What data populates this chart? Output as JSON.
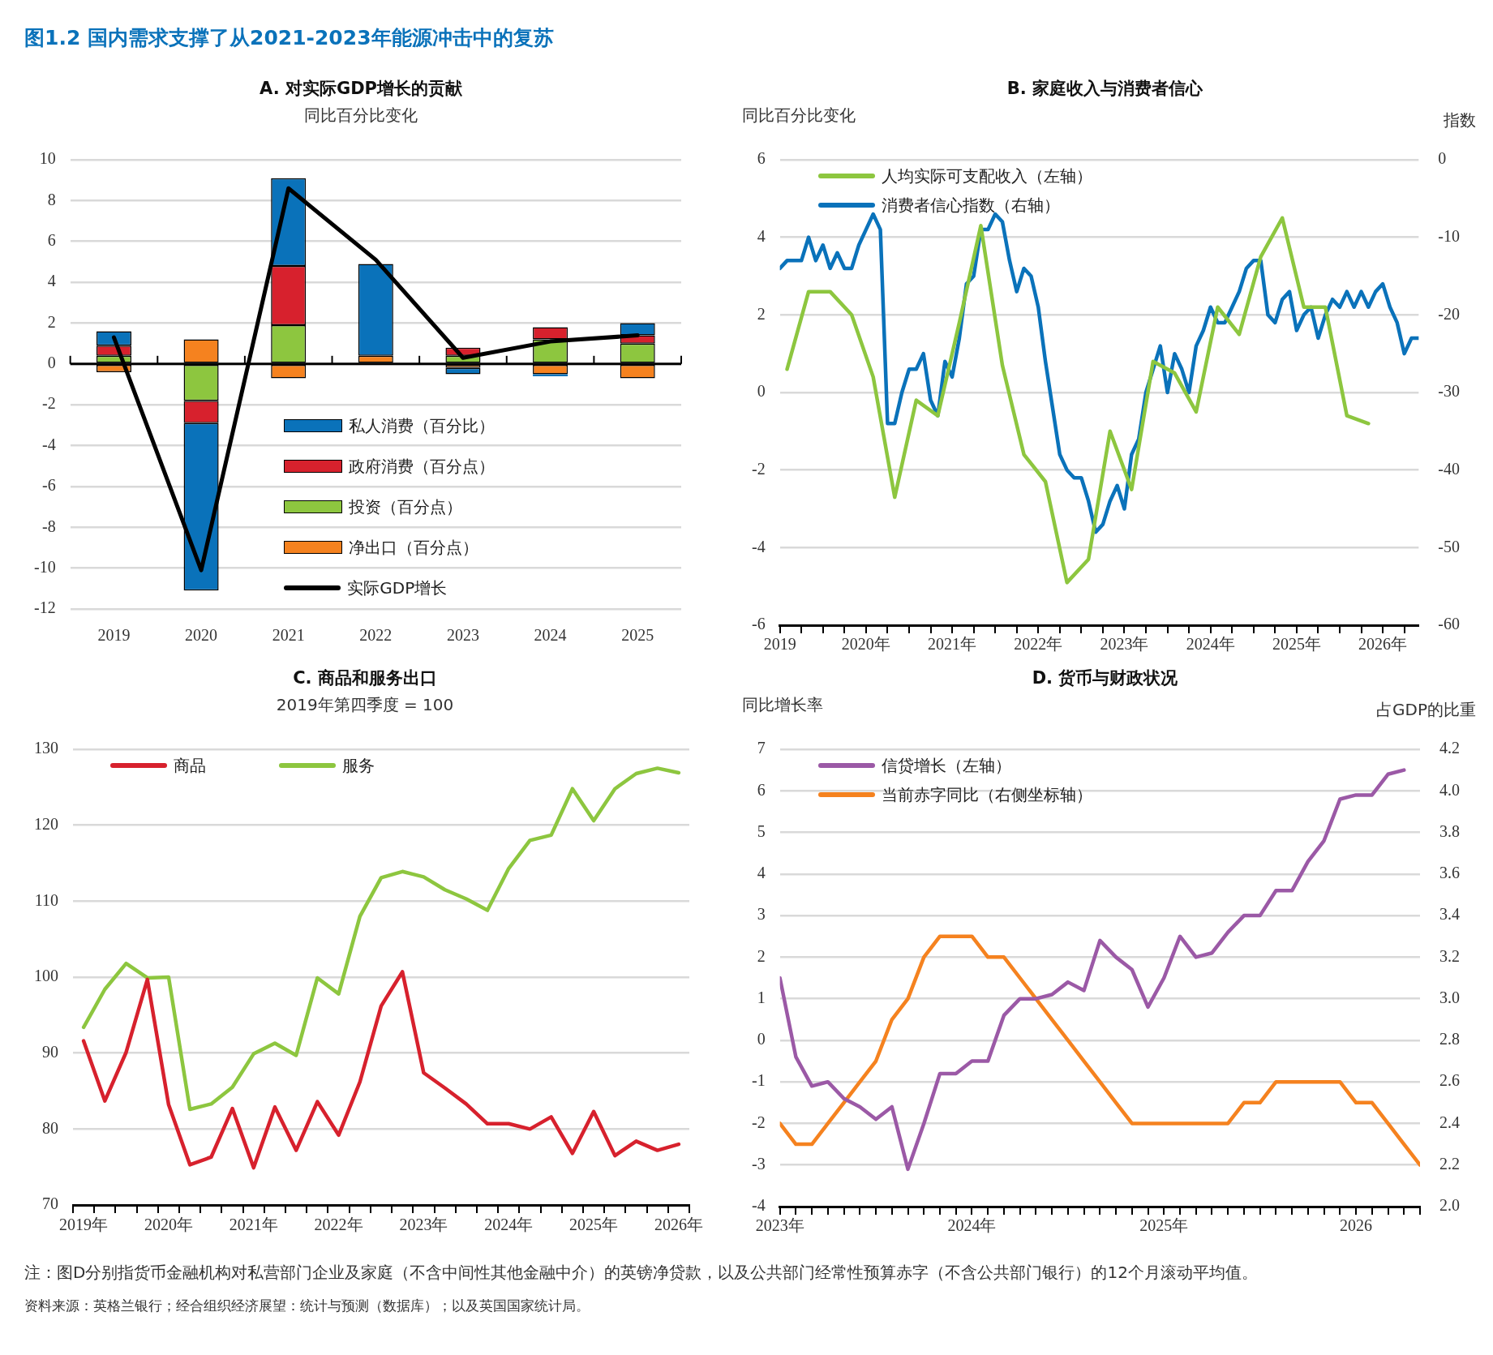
{
  "chart_data": [
    {
      "type": "bar",
      "title": "A. 对实际GDP增长的贡献",
      "subtitle": "同比百分比变化",
      "stacked": true,
      "legend": "bottom",
      "grid": "y",
      "marker": "none",
      "line_style": "solid",
      "annotations": [
        "图1.2 国内需求支撑了从2021-2023年能源冲击中的复苏"
      ],
      "categories": [
        "2019",
        "2020",
        "2021",
        "2022",
        "2023",
        "2024",
        "2025"
      ],
      "ylim": [
        -12,
        10
      ],
      "yticks": [
        -12,
        -10,
        -8,
        -6,
        -4,
        -2,
        0,
        2,
        4,
        6,
        8,
        10
      ],
      "series": [
        {
          "name": "净出口（百分点）",
          "type": "bar",
          "color": "#f5821f",
          "values": [
            -0.4,
            1.2,
            -0.7,
            0.4,
            -0.2,
            -0.5,
            -0.7
          ]
        },
        {
          "name": "投资（百分点）",
          "type": "bar",
          "color": "#8dc63f",
          "values": [
            0.4,
            -1.8,
            1.9,
            0,
            0.4,
            1.2,
            1.0
          ]
        },
        {
          "name": "政府消费（百分点）",
          "type": "bar",
          "color": "#d7212d",
          "values": [
            0.5,
            -1.1,
            2.9,
            0,
            0.4,
            0.6,
            0.4
          ]
        },
        {
          "name": "私人消费（百分比）",
          "type": "bar",
          "color": "#0a72ba",
          "values": [
            0.7,
            -8.2,
            4.3,
            4.5,
            -0.3,
            -0.1,
            0.6
          ]
        },
        {
          "name": "实际GDP增长",
          "type": "line",
          "color": "#000000",
          "values": [
            1.3,
            -10.1,
            8.6,
            5.1,
            0.3,
            1.1,
            1.4
          ]
        }
      ]
    },
    {
      "type": "line",
      "title": "B. 家庭收入与消费者信心",
      "ylabel": "同比百分比变化",
      "y2label": "指数",
      "legend": "top left",
      "grid": "y",
      "marker": "none",
      "line_style": "solid",
      "x": [
        "2019-01",
        "2019-02",
        "2019-03",
        "2019-04",
        "2019-05",
        "2019-06",
        "2019-07",
        "2019-08",
        "2019-09",
        "2019-10",
        "2019-11",
        "2019-12",
        "2020-01",
        "2020-02",
        "2020-03",
        "2020-04",
        "2020-05",
        "2020-06",
        "2020-07",
        "2020-08",
        "2020-09",
        "2020-10",
        "2020-11",
        "2020-12",
        "2021-01",
        "2021-02",
        "2021-03",
        "2021-04",
        "2021-05",
        "2021-06",
        "2021-07",
        "2021-08",
        "2021-09",
        "2021-10",
        "2021-11",
        "2021-12",
        "2022-01",
        "2022-02",
        "2022-03",
        "2022-04",
        "2022-05",
        "2022-06",
        "2022-07",
        "2022-08",
        "2022-09",
        "2022-10",
        "2022-11",
        "2022-12",
        "2023-01",
        "2023-02",
        "2023-03",
        "2023-04",
        "2023-05",
        "2023-06",
        "2023-07",
        "2023-08",
        "2023-09",
        "2023-10",
        "2023-11",
        "2023-12",
        "2024-01",
        "2024-02",
        "2024-03",
        "2024-04",
        "2024-05",
        "2024-06",
        "2024-07",
        "2024-08",
        "2024-09",
        "2024-10",
        "2024-11",
        "2024-12",
        "2025-01",
        "2025-02",
        "2025-03",
        "2025-04",
        "2025-05",
        "2025-06",
        "2025-07",
        "2025-08",
        "2025-09",
        "2025-10",
        "2025-11",
        "2025-12",
        "2026-01",
        "2026-02",
        "2026-03",
        "2026-04",
        "2026-05",
        "2026-06"
      ],
      "xlim": [
        "2019-01",
        "2026-06"
      ],
      "xticks": [
        {
          "value": "2019-01",
          "label": "2019"
        },
        {
          "value": "2019-04",
          "label": null
        },
        {
          "value": "2019-07",
          "label": null
        },
        {
          "value": "2019-10",
          "label": null
        },
        {
          "value": "2020-01",
          "label": "2020年"
        },
        {
          "value": "2020-04",
          "label": null
        },
        {
          "value": "2020-07",
          "label": null
        },
        {
          "value": "2020-10",
          "label": null
        },
        {
          "value": "2021-01",
          "label": "2021年"
        },
        {
          "value": "2021-04",
          "label": null
        },
        {
          "value": "2021-07",
          "label": null
        },
        {
          "value": "2021-10",
          "label": null
        },
        {
          "value": "2022-01",
          "label": "2022年"
        },
        {
          "value": "2022-04",
          "label": null
        },
        {
          "value": "2022-07",
          "label": null
        },
        {
          "value": "2022-10",
          "label": null
        },
        {
          "value": "2023-01",
          "label": "2023年"
        },
        {
          "value": "2023-04",
          "label": null
        },
        {
          "value": "2023-07",
          "label": null
        },
        {
          "value": "2023-10",
          "label": null
        },
        {
          "value": "2024-01",
          "label": "2024年"
        },
        {
          "value": "2024-04",
          "label": null
        },
        {
          "value": "2024-07",
          "label": null
        },
        {
          "value": "2024-10",
          "label": null
        },
        {
          "value": "2025-01",
          "label": "2025年"
        },
        {
          "value": "2025-04",
          "label": null
        },
        {
          "value": "2025-07",
          "label": null
        },
        {
          "value": "2025-10",
          "label": null
        },
        {
          "value": "2026-01",
          "label": "2026年"
        },
        {
          "value": "2026-04",
          "label": null
        }
      ],
      "ylim": [
        -6,
        6
      ],
      "yticks": [
        -6,
        -4,
        -2,
        0,
        2,
        4,
        6
      ],
      "y2lim": [
        -60,
        0
      ],
      "y2ticks": [
        -60,
        -50,
        -40,
        -30,
        -20,
        -10,
        0
      ],
      "series": [
        {
          "name": "人均实际可支配收入（左轴）",
          "color": "#8dc63f",
          "x": [
            "2019-02",
            "2019-05",
            "2019-08",
            "2019-11",
            "2020-02",
            "2020-05",
            "2020-08",
            "2020-11",
            "2021-02",
            "2021-05",
            "2021-08",
            "2021-11",
            "2022-02",
            "2022-05",
            "2022-08",
            "2022-11",
            "2023-02",
            "2023-05",
            "2023-08",
            "2023-11",
            "2024-02",
            "2024-05",
            "2024-08",
            "2024-11",
            "2025-02",
            "2025-05",
            "2025-08",
            "2025-11"
          ],
          "values": [
            0.6,
            2.6,
            2.6,
            2.0,
            0.4,
            -2.7,
            -0.2,
            -0.6,
            1.8,
            4.3,
            0.7,
            -1.6,
            -2.3,
            -4.9,
            -4.3,
            -1.0,
            -2.5,
            0.8,
            0.5,
            -0.5,
            2.2,
            1.5,
            3.5,
            4.5,
            2.2,
            2.2,
            -0.6,
            -0.8
          ]
        },
        {
          "name": "消费者信心指数（右轴）",
          "color": "#0a72ba",
          "axis": "y2",
          "values": [
            -14,
            -13,
            -13,
            -13,
            -10,
            -13,
            -11,
            -14,
            -12,
            -14,
            -14,
            -11,
            -9,
            -7,
            -9,
            -34,
            -34,
            -30,
            -27,
            -27,
            -25,
            -31,
            -33,
            -26,
            -28,
            -23,
            -16,
            -15,
            -9,
            -9,
            -7,
            -8,
            -13,
            -17,
            -14,
            -15,
            -19,
            -26,
            -32,
            -38,
            -40,
            -41,
            -41,
            -44,
            -48,
            -47,
            -44,
            -42,
            -45,
            -38,
            -36,
            -30,
            -27,
            -24,
            -30,
            -25,
            -27,
            -30,
            -24,
            -22,
            -19,
            -21,
            -21,
            -19,
            -17,
            -14,
            -13,
            -13,
            -20,
            -21,
            -18,
            -17,
            -22,
            -20,
            -19,
            -23,
            -20,
            -18,
            -19,
            -17,
            -19,
            -17,
            -19,
            -17,
            -16,
            -19,
            -21,
            -25,
            -23,
            -23
          ]
        }
      ]
    },
    {
      "type": "line",
      "title": "C. 商品和服务出口",
      "subtitle": "2019年第四季度 = 100",
      "legend": "top left",
      "grid": "y",
      "marker": "none",
      "line_style": "solid",
      "categories": [
        "2019年",
        null,
        null,
        null,
        "2020年",
        null,
        null,
        null,
        "2021年",
        null,
        null,
        null,
        "2022年",
        null,
        null,
        null,
        "2023年",
        null,
        null,
        null,
        "2024年",
        null,
        null,
        null,
        "2025年",
        null,
        null,
        null,
        "2026年"
      ],
      "ylim": [
        70,
        130
      ],
      "yticks": [
        70,
        80,
        90,
        100,
        110,
        120,
        130
      ],
      "series": [
        {
          "name": "商品",
          "color": "#d7212d",
          "values": [
            91.6,
            83.7,
            90.1,
            99.7,
            83.2,
            75.3,
            76.3,
            82.7,
            74.9,
            82.9,
            77.2,
            83.6,
            79.2,
            86.2,
            96.2,
            100.7,
            87.4,
            85.4,
            83.3,
            80.7,
            80.7,
            80.0,
            81.6,
            76.8,
            82.3,
            76.5,
            78.4,
            77.2,
            78.0
          ]
        },
        {
          "name": "服务",
          "color": "#8dc63f",
          "values": [
            93.4,
            98.4,
            101.8,
            99.9,
            100.0,
            82.6,
            83.3,
            85.5,
            89.9,
            91.3,
            89.7,
            99.9,
            97.8,
            108.0,
            113.1,
            113.9,
            113.2,
            111.5,
            110.3,
            108.8,
            114.3,
            118.0,
            118.7,
            124.8,
            120.6,
            124.8,
            126.8,
            127.5,
            126.9
          ]
        }
      ]
    },
    {
      "type": "line",
      "title": "D. 货币与财政状况",
      "ylabel": "同比增长率",
      "y2label": "占GDP的比重",
      "legend": "top left",
      "grid": "y",
      "marker": "none",
      "line_style": "solid",
      "annotations": [
        "注：图D分别指货币金融机构对私营部门企业及家庭（不含中间性其他金融中介）的英镑净贷款，以及公共部门经常性预算赤字（不含公共部门银行）的12个月滚动平均值。",
        "资料来源：英格兰银行；经合组织经济展望：统计与预测（数据库）；以及英国国家统计局。"
      ],
      "x": [
        "2023-01",
        "2023-02",
        "2023-03",
        "2023-04",
        "2023-05",
        "2023-06",
        "2023-07",
        "2023-08",
        "2023-09",
        "2023-10",
        "2023-11",
        "2023-12",
        "2024-01",
        "2024-02",
        "2024-03",
        "2024-04",
        "2024-05",
        "2024-06",
        "2024-07",
        "2024-08",
        "2024-09",
        "2024-10",
        "2024-11",
        "2024-12",
        "2025-01",
        "2025-02",
        "2025-03",
        "2025-04",
        "2025-05",
        "2025-06",
        "2025-07",
        "2025-08",
        "2025-09",
        "2025-10",
        "2025-11",
        "2025-12",
        "2026-01",
        "2026-02",
        "2026-03",
        "2026-04",
        "2026-05"
      ],
      "xlim": [
        "2023-01",
        "2026-05"
      ],
      "xticks": [
        {
          "value": "2023-01",
          "label": "2023年"
        },
        {
          "value": "2023-02",
          "label": null
        },
        {
          "value": "2023-03",
          "label": null
        },
        {
          "value": "2023-04",
          "label": null
        },
        {
          "value": "2023-05",
          "label": null
        },
        {
          "value": "2023-06",
          "label": null
        },
        {
          "value": "2023-07",
          "label": null
        },
        {
          "value": "2023-08",
          "label": null
        },
        {
          "value": "2023-09",
          "label": null
        },
        {
          "value": "2023-10",
          "label": null
        },
        {
          "value": "2023-11",
          "label": null
        },
        {
          "value": "2023-12",
          "label": null
        },
        {
          "value": "2024-01",
          "label": "2024年"
        },
        {
          "value": "2024-02",
          "label": null
        },
        {
          "value": "2024-03",
          "label": null
        },
        {
          "value": "2024-04",
          "label": null
        },
        {
          "value": "2024-05",
          "label": null
        },
        {
          "value": "2024-06",
          "label": null
        },
        {
          "value": "2024-07",
          "label": null
        },
        {
          "value": "2024-08",
          "label": null
        },
        {
          "value": "2024-09",
          "label": null
        },
        {
          "value": "2024-10",
          "label": null
        },
        {
          "value": "2024-11",
          "label": null
        },
        {
          "value": "2024-12",
          "label": null
        },
        {
          "value": "2025-01",
          "label": "2025年"
        },
        {
          "value": "2025-02",
          "label": null
        },
        {
          "value": "2025-03",
          "label": null
        },
        {
          "value": "2025-04",
          "label": null
        },
        {
          "value": "2025-05",
          "label": null
        },
        {
          "value": "2025-06",
          "label": null
        },
        {
          "value": "2025-07",
          "label": null
        },
        {
          "value": "2025-08",
          "label": null
        },
        {
          "value": "2025-09",
          "label": null
        },
        {
          "value": "2025-10",
          "label": null
        },
        {
          "value": "2025-11",
          "label": null
        },
        {
          "value": "2025-12",
          "label": null
        },
        {
          "value": "2026-01",
          "label": "2026"
        },
        {
          "value": "2026-02",
          "label": null
        },
        {
          "value": "2026-03",
          "label": null
        },
        {
          "value": "2026-04",
          "label": null
        },
        {
          "value": "2026-05",
          "label": null
        }
      ],
      "ylim": [
        -4,
        7
      ],
      "yticks": [
        -4,
        -3,
        -2,
        -1,
        0,
        1,
        2,
        3,
        4,
        5,
        6,
        7
      ],
      "y2lim": [
        2.0,
        4.2
      ],
      "y2ticks": [
        {
          "value": 2,
          "label": "2.0"
        },
        2.2,
        2.4,
        2.6,
        2.8,
        {
          "value": 3,
          "label": "3.0"
        },
        3.2,
        3.4,
        3.6,
        3.8,
        {
          "value": 4,
          "label": "4.0"
        },
        4.2
      ],
      "series": [
        {
          "name": "信贷增长（左轴）",
          "color": "#9b59a6",
          "x": [
            "2023-01",
            "2023-02",
            "2023-03",
            "2023-04",
            "2023-05",
            "2023-06",
            "2023-07",
            "2023-08",
            "2023-09",
            "2023-10",
            "2023-11",
            "2023-12",
            "2024-01",
            "2024-02",
            "2024-03",
            "2024-04",
            "2024-05",
            "2024-06",
            "2024-07",
            "2024-08",
            "2024-09",
            "2024-10",
            "2024-11",
            "2024-12",
            "2025-01",
            "2025-02",
            "2025-03",
            "2025-04",
            "2025-05",
            "2025-06",
            "2025-07",
            "2025-08",
            "2025-09",
            "2025-10",
            "2025-11",
            "2025-12",
            "2026-01",
            "2026-02",
            "2026-03",
            "2026-04"
          ],
          "values": [
            1.5,
            -0.4,
            -1.1,
            -1.0,
            -1.4,
            -1.6,
            -1.9,
            -1.6,
            -3.1,
            -2.0,
            -0.8,
            -0.8,
            -0.5,
            -0.5,
            0.6,
            1.0,
            1.0,
            1.1,
            1.4,
            1.2,
            2.4,
            2.0,
            1.7,
            0.8,
            1.5,
            2.5,
            2.0,
            2.1,
            2.6,
            3.0,
            3.0,
            3.6,
            3.6,
            4.3,
            4.8,
            5.8,
            5.9,
            5.9,
            6.4,
            6.5
          ]
        },
        {
          "name": "当前赤字同比（右侧坐标轴）",
          "color": "#f5821f",
          "axis": "y2",
          "values": [
            2.4,
            2.3,
            2.3,
            2.4,
            2.5,
            2.6,
            2.7,
            2.9,
            3.0,
            3.2,
            3.3,
            3.3,
            3.3,
            3.2,
            3.2,
            3.1,
            3.0,
            2.9,
            2.8,
            2.7,
            2.6,
            2.5,
            2.4,
            2.4,
            2.4,
            2.4,
            2.4,
            2.4,
            2.4,
            2.5,
            2.5,
            2.6,
            2.6,
            2.6,
            2.6,
            2.6,
            2.5,
            2.5,
            2.4,
            2.3,
            2.2
          ]
        }
      ]
    }
  ]
}
